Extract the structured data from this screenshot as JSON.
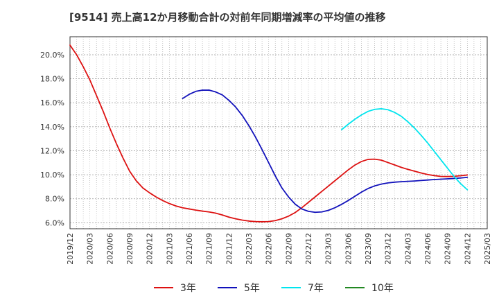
{
  "chart_data": {
    "type": "line",
    "title": "[9514]  売上高12か月移動合計の対前年同期増減率の平均値の推移",
    "xlabel": "",
    "ylabel": "",
    "ylim": [
      5.5,
      21.5
    ],
    "x_ticks": [
      "2019/12",
      "2020/03",
      "2020/06",
      "2020/09",
      "2020/12",
      "2021/03",
      "2021/06",
      "2021/09",
      "2021/12",
      "2022/03",
      "2022/06",
      "2022/09",
      "2022/12",
      "2023/03",
      "2023/06",
      "2023/09",
      "2023/12",
      "2024/03",
      "2024/06",
      "2024/09",
      "2024/12",
      "2025/03"
    ],
    "y_ticks": [
      "6.0%",
      "8.0%",
      "10.0%",
      "12.0%",
      "14.0%",
      "16.0%",
      "18.0%",
      "20.0%"
    ],
    "y_tick_values": [
      6,
      8,
      10,
      12,
      14,
      16,
      18,
      20
    ],
    "grid": true,
    "legend_position": "bottom",
    "series": [
      {
        "name": "3年",
        "color": "#dd1111",
        "x": [
          "2019/12",
          "2020/01",
          "2020/02",
          "2020/03",
          "2020/04",
          "2020/05",
          "2020/06",
          "2020/07",
          "2020/08",
          "2020/09",
          "2020/10",
          "2020/11",
          "2020/12",
          "2021/01",
          "2021/02",
          "2021/03",
          "2021/04",
          "2021/05",
          "2021/06",
          "2021/07",
          "2021/08",
          "2021/09",
          "2021/10",
          "2021/11",
          "2021/12",
          "2022/01",
          "2022/02",
          "2022/03",
          "2022/04",
          "2022/05",
          "2022/06",
          "2022/07",
          "2022/08",
          "2022/09",
          "2022/10",
          "2022/11",
          "2022/12",
          "2023/01",
          "2023/02",
          "2023/03",
          "2023/04",
          "2023/05",
          "2023/06",
          "2023/07",
          "2023/08",
          "2023/09",
          "2023/10",
          "2023/11",
          "2023/12",
          "2024/01",
          "2024/02",
          "2024/03",
          "2024/04",
          "2024/05",
          "2024/06",
          "2024/07",
          "2024/08",
          "2024/09",
          "2024/10",
          "2024/11",
          "2024/12"
        ],
        "values": [
          20.8,
          20.0,
          19.0,
          17.9,
          16.6,
          15.3,
          13.9,
          12.6,
          11.4,
          10.3,
          9.5,
          8.9,
          8.5,
          8.15,
          7.85,
          7.6,
          7.4,
          7.25,
          7.15,
          7.05,
          6.97,
          6.9,
          6.8,
          6.65,
          6.47,
          6.33,
          6.22,
          6.14,
          6.1,
          6.08,
          6.1,
          6.18,
          6.33,
          6.55,
          6.85,
          7.25,
          7.7,
          8.15,
          8.6,
          9.05,
          9.5,
          9.95,
          10.4,
          10.8,
          11.1,
          11.28,
          11.3,
          11.22,
          11.02,
          10.82,
          10.62,
          10.45,
          10.3,
          10.15,
          10.02,
          9.93,
          9.86,
          9.85,
          9.87,
          9.92,
          9.98
        ]
      },
      {
        "name": "5年",
        "color": "#1111bb",
        "x": [
          "2021/05",
          "2021/06",
          "2021/07",
          "2021/08",
          "2021/09",
          "2021/10",
          "2021/11",
          "2021/12",
          "2022/01",
          "2022/02",
          "2022/03",
          "2022/04",
          "2022/05",
          "2022/06",
          "2022/07",
          "2022/08",
          "2022/09",
          "2022/10",
          "2022/11",
          "2022/12",
          "2023/01",
          "2023/02",
          "2023/03",
          "2023/04",
          "2023/05",
          "2023/06",
          "2023/07",
          "2023/08",
          "2023/09",
          "2023/10",
          "2023/11",
          "2023/12",
          "2024/01",
          "2024/02",
          "2024/03",
          "2024/04",
          "2024/05",
          "2024/06",
          "2024/07",
          "2024/08",
          "2024/09",
          "2024/10",
          "2024/11",
          "2024/12"
        ],
        "values": [
          16.35,
          16.7,
          16.95,
          17.05,
          17.05,
          16.9,
          16.65,
          16.2,
          15.65,
          14.95,
          14.1,
          13.15,
          12.1,
          11.0,
          9.9,
          8.9,
          8.15,
          7.55,
          7.15,
          6.95,
          6.87,
          6.9,
          7.03,
          7.25,
          7.53,
          7.85,
          8.2,
          8.55,
          8.85,
          9.07,
          9.22,
          9.32,
          9.38,
          9.42,
          9.45,
          9.48,
          9.52,
          9.56,
          9.6,
          9.63,
          9.66,
          9.69,
          9.73,
          9.78
        ]
      },
      {
        "name": "7年",
        "color": "#00e5ee",
        "x": [
          "2023/05",
          "2023/06",
          "2023/07",
          "2023/08",
          "2023/09",
          "2023/10",
          "2023/11",
          "2023/12",
          "2024/01",
          "2024/02",
          "2024/03",
          "2024/04",
          "2024/05",
          "2024/06",
          "2024/07",
          "2024/08",
          "2024/09",
          "2024/10",
          "2024/11",
          "2024/12"
        ],
        "values": [
          13.75,
          14.2,
          14.62,
          14.98,
          15.28,
          15.45,
          15.5,
          15.42,
          15.2,
          14.88,
          14.42,
          13.9,
          13.3,
          12.65,
          11.95,
          11.25,
          10.55,
          9.85,
          9.25,
          8.75
        ]
      },
      {
        "name": "10年",
        "color": "#228822",
        "x": [],
        "values": []
      }
    ]
  }
}
